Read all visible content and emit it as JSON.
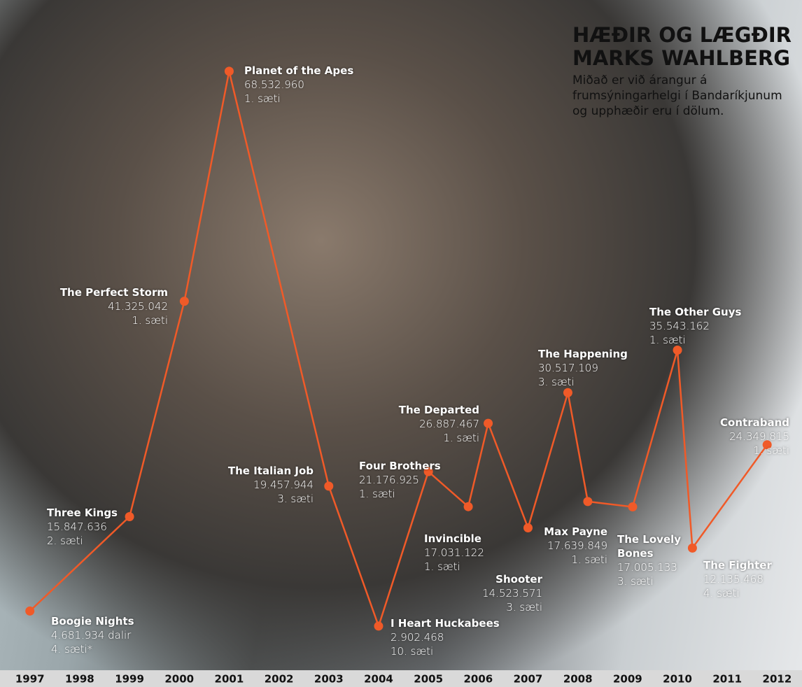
{
  "chart_data": {
    "type": "line",
    "title": "HÆÐIR OG LÆGÐIR MARKS WAHLBERG",
    "subtitle": "Miðað er við árangur á frumsýningarhelgi í Bandaríkjunum og upphæðir eru í dölum.",
    "x": [
      1997,
      1999,
      2000.1,
      2001,
      2003,
      2004,
      2005,
      2005.8,
      2006.2,
      2007,
      2007.8,
      2008.2,
      2009.1,
      2010,
      2010.3,
      2011.8
    ],
    "films": [
      "Boogie Nights",
      "Three Kings",
      "The Perfect Storm",
      "Planet of the Apes",
      "The Italian Job",
      "I Heart Huckabees",
      "Four Brothers",
      "Invincible",
      "The Departed",
      "Shooter",
      "The Happening",
      "Max Payne",
      "The Lovely Bones",
      "The Other Guys",
      "The Fighter",
      "Contraband"
    ],
    "values": [
      4681934,
      15847636,
      41325042,
      68532960,
      19457944,
      2902468,
      21176925,
      17031122,
      26887467,
      14523571,
      30517109,
      17639849,
      17005133,
      35543162,
      12135468,
      24349815
    ],
    "value_labels": [
      "4.681.934 dalir",
      "15.847.636",
      "41.325.042",
      "68.532.960",
      "19.457.944",
      "2.902.468",
      "21.176.925",
      "17.031.122",
      "26.887.467",
      "14.523.571",
      "30.517.109",
      "17.639.849",
      "17.005.133",
      "35.543.162",
      "12.135.468",
      "24.349.815"
    ],
    "ranks": [
      "4. sæti*",
      "2. sæti",
      "1. sæti",
      "1. sæti",
      "3. sæti",
      "10. sæti",
      "1. sæti",
      "1. sæti",
      "1. sæti",
      "3. sæti",
      "3. sæti",
      "1. sæti",
      "3. sæti",
      "1. sæti",
      "4. sæti",
      "1. sæti"
    ],
    "color": "#f05a28",
    "xlim": [
      1996.4,
      2012.5
    ],
    "xticks": [
      1997,
      1998,
      1999,
      2000,
      2001,
      2002,
      2003,
      2004,
      2005,
      2006,
      2007,
      2008,
      2009,
      2010,
      2011,
      2012
    ],
    "ylim": [
      0,
      72000000
    ]
  }
}
